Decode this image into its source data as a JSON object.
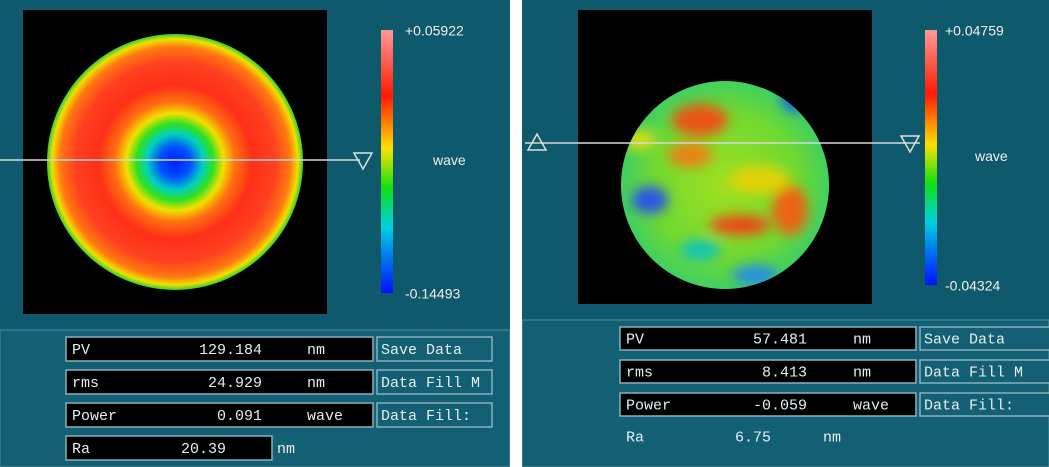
{
  "panels": [
    {
      "colorbar": {
        "max": "+0.05922",
        "min": "-0.14493",
        "unit": "wave"
      },
      "metrics": [
        {
          "label": "PV",
          "value": "129.184",
          "unit": "nm"
        },
        {
          "label": "rms",
          "value": "24.929",
          "unit": "nm"
        },
        {
          "label": "Power",
          "value": "0.091",
          "unit": "wave"
        },
        {
          "label": "Ra",
          "value": "20.39",
          "unit": "nm"
        }
      ],
      "buttons": [
        "Save Data",
        "Data Fill M",
        "Data Fill:"
      ]
    },
    {
      "colorbar": {
        "max": "+0.04759",
        "min": "-0.04324",
        "unit": "wave"
      },
      "metrics": [
        {
          "label": "PV",
          "value": "57.481",
          "unit": "nm"
        },
        {
          "label": "rms",
          "value": "8.413",
          "unit": "nm"
        },
        {
          "label": "Power",
          "value": "-0.059",
          "unit": "wave"
        },
        {
          "label": "Ra",
          "value": "6.75",
          "unit": "nm"
        }
      ],
      "buttons": [
        "Save Data",
        "Data Fill M",
        "Data Fill:"
      ]
    }
  ]
}
